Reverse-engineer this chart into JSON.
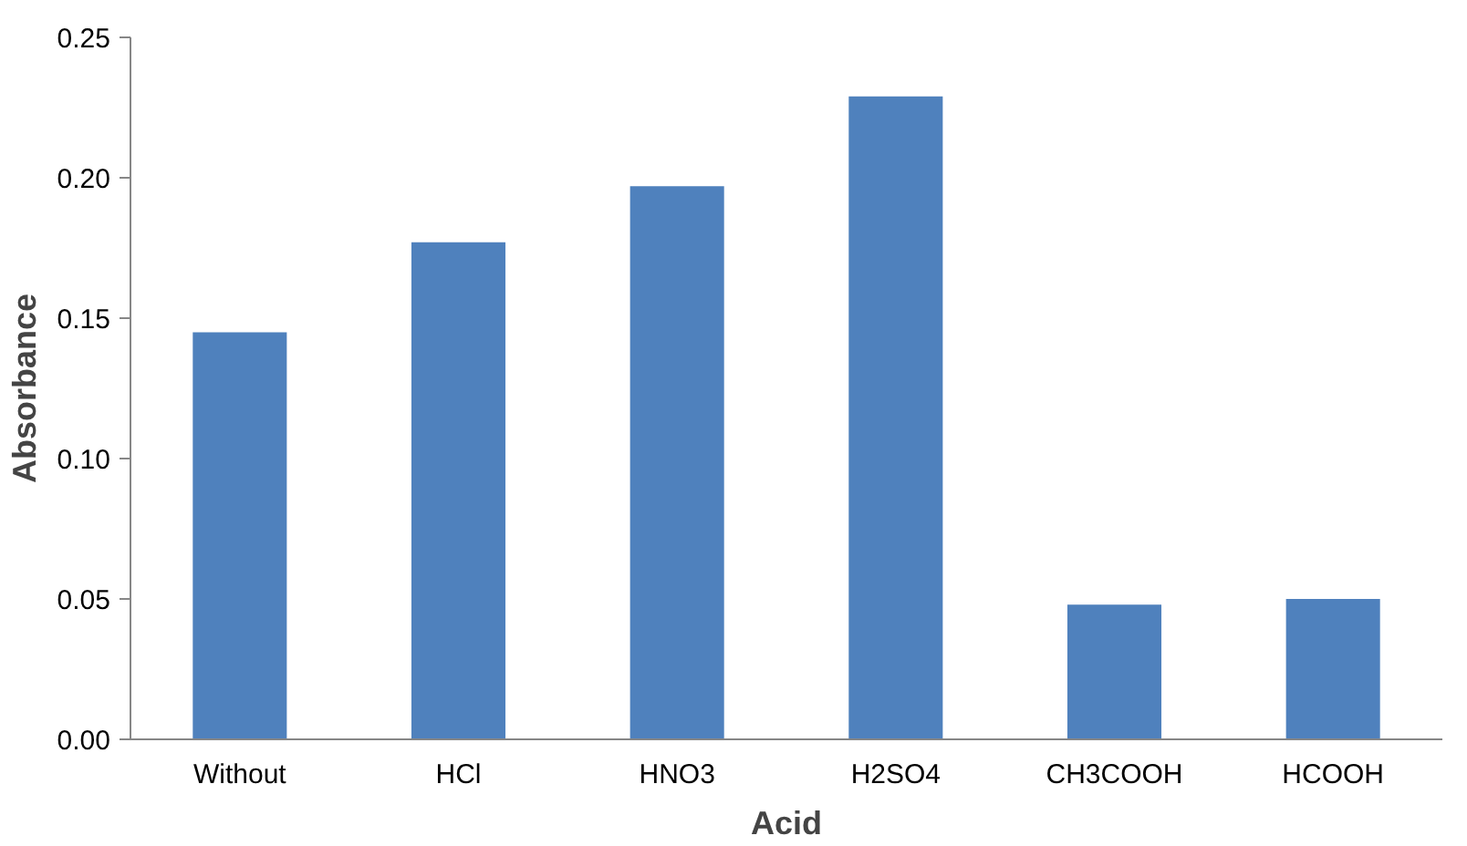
{
  "chart_data": {
    "type": "bar",
    "xlabel": "Acid",
    "ylabel": "Absorbance",
    "categories": [
      "Without",
      "HCl",
      "HNO3",
      "H2SO4",
      "CH3COOH",
      "HCOOH"
    ],
    "values": [
      0.145,
      0.177,
      0.197,
      0.229,
      0.048,
      0.05
    ],
    "color": "#4f81bd",
    "ylim": [
      0,
      0.25
    ],
    "yticks": [
      {
        "value": 0,
        "label": "0.00"
      },
      {
        "value": 0.05,
        "label": "0.05"
      },
      {
        "value": 0.1,
        "label": "0.10"
      },
      {
        "value": 0.15,
        "label": "0.15"
      },
      {
        "value": 0.2,
        "label": "0.20"
      },
      {
        "value": 0.25,
        "label": "0.25"
      }
    ],
    "grid": false
  }
}
